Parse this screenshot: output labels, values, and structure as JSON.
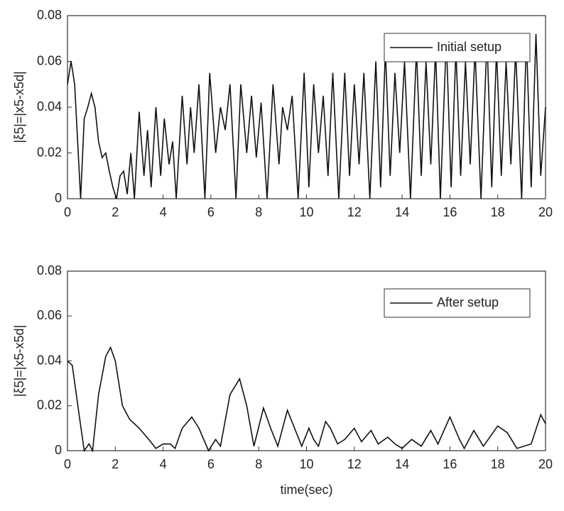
{
  "chart_data": [
    {
      "type": "line",
      "ylabel": "|ξ5|=|x5-x5d|",
      "x": [
        0,
        0.15,
        0.3,
        0.45,
        0.55,
        0.7,
        0.85,
        1.0,
        1.15,
        1.3,
        1.45,
        1.6,
        1.75,
        1.9,
        2.05,
        2.2,
        2.35,
        2.5,
        2.65,
        2.8,
        3.0,
        3.2,
        3.35,
        3.5,
        3.7,
        3.9,
        4.05,
        4.25,
        4.4,
        4.55,
        4.8,
        5.0,
        5.15,
        5.3,
        5.5,
        5.75,
        5.95,
        6.2,
        6.4,
        6.6,
        6.8,
        7.05,
        7.25,
        7.5,
        7.7,
        7.9,
        8.1,
        8.35,
        8.6,
        8.85,
        9.0,
        9.2,
        9.4,
        9.65,
        9.9,
        10.1,
        10.3,
        10.5,
        10.7,
        10.9,
        11.1,
        11.35,
        11.6,
        11.8,
        12.0,
        12.2,
        12.4,
        12.65,
        12.9,
        13.1,
        13.3,
        13.5,
        13.7,
        13.9,
        14.1,
        14.35,
        14.6,
        14.8,
        15.0,
        15.2,
        15.4,
        15.6,
        15.85,
        16.05,
        16.25,
        16.45,
        16.65,
        16.85,
        17.05,
        17.3,
        17.55,
        17.75,
        17.95,
        18.15,
        18.35,
        18.55,
        18.75,
        19.0,
        19.2,
        19.4,
        19.6,
        19.8,
        20.0
      ],
      "series": [
        {
          "name": "Initial setup",
          "color": "#111111",
          "values": [
            0.05,
            0.06,
            0.05,
            0.02,
            0,
            0.035,
            0.04,
            0.046,
            0.04,
            0.025,
            0.018,
            0.02,
            0.012,
            0.005,
            0,
            0.01,
            0.012,
            0.002,
            0.02,
            0,
            0.038,
            0.01,
            0.03,
            0.005,
            0.04,
            0.01,
            0.035,
            0.015,
            0.025,
            0,
            0.045,
            0.015,
            0.04,
            0.02,
            0.05,
            0,
            0.055,
            0.02,
            0.04,
            0.03,
            0.05,
            0,
            0.05,
            0.02,
            0.045,
            0.018,
            0.042,
            0,
            0.05,
            0.015,
            0.04,
            0.03,
            0.045,
            0,
            0.055,
            0.005,
            0.05,
            0.02,
            0.045,
            0.01,
            0.055,
            0,
            0.055,
            0.01,
            0.05,
            0.015,
            0.055,
            0,
            0.06,
            0.005,
            0.065,
            0.01,
            0.055,
            0.02,
            0.06,
            0,
            0.065,
            0.01,
            0.06,
            0.015,
            0.065,
            0,
            0.07,
            0.005,
            0.065,
            0.01,
            0.06,
            0.015,
            0.065,
            0,
            0.07,
            0.005,
            0.065,
            0.01,
            0.06,
            0.015,
            0.065,
            0,
            0.07,
            0.005,
            0.072,
            0.01,
            0.04
          ]
        }
      ],
      "xlim": [
        0,
        20
      ],
      "xticks": [
        0,
        2,
        4,
        6,
        8,
        10,
        12,
        14,
        16,
        18,
        20
      ],
      "ylim": [
        0,
        0.08
      ],
      "yticks": [
        0,
        0.02,
        0.04,
        0.06,
        0.08
      ],
      "legend": "upper right"
    },
    {
      "type": "line",
      "ylabel": "|ξ5|=|x5-x5d|",
      "xlabel": "time(sec)",
      "x": [
        0,
        0.2,
        0.5,
        0.7,
        0.9,
        1.05,
        1.3,
        1.6,
        1.8,
        2.0,
        2.3,
        2.6,
        3.0,
        3.4,
        3.7,
        4.0,
        4.3,
        4.5,
        4.8,
        5.2,
        5.5,
        5.9,
        6.2,
        6.4,
        6.8,
        7.2,
        7.5,
        7.8,
        8.2,
        8.5,
        8.8,
        9.2,
        9.5,
        9.8,
        10.1,
        10.3,
        10.5,
        10.8,
        11.0,
        11.3,
        11.6,
        12.0,
        12.3,
        12.7,
        13.0,
        13.4,
        13.7,
        14.0,
        14.4,
        14.8,
        15.2,
        15.5,
        16.0,
        16.4,
        16.6,
        17.0,
        17.4,
        18.0,
        18.4,
        18.8,
        19.4,
        19.8,
        20.0
      ],
      "series": [
        {
          "name": "After setup",
          "color": "#111111",
          "values": [
            0.04,
            0.038,
            0.015,
            0,
            0.003,
            0,
            0.025,
            0.042,
            0.046,
            0.04,
            0.02,
            0.014,
            0.01,
            0.005,
            0.001,
            0.003,
            0.003,
            0.001,
            0.01,
            0.015,
            0.01,
            0,
            0.005,
            0.002,
            0.025,
            0.032,
            0.02,
            0.002,
            0.019,
            0.01,
            0.002,
            0.018,
            0.01,
            0.002,
            0.01,
            0.005,
            0.002,
            0.013,
            0.01,
            0.003,
            0.005,
            0.01,
            0.004,
            0.009,
            0.003,
            0.006,
            0.003,
            0.001,
            0.005,
            0.002,
            0.009,
            0.003,
            0.015,
            0.005,
            0.001,
            0.009,
            0.002,
            0.011,
            0.008,
            0.001,
            0.003,
            0.016,
            0.012
          ]
        }
      ],
      "xlim": [
        0,
        20
      ],
      "xticks": [
        0,
        2,
        4,
        6,
        8,
        10,
        12,
        14,
        16,
        18,
        20
      ],
      "ylim": [
        0,
        0.08
      ],
      "yticks": [
        0,
        0.02,
        0.04,
        0.06,
        0.08
      ],
      "legend": "upper right"
    }
  ]
}
